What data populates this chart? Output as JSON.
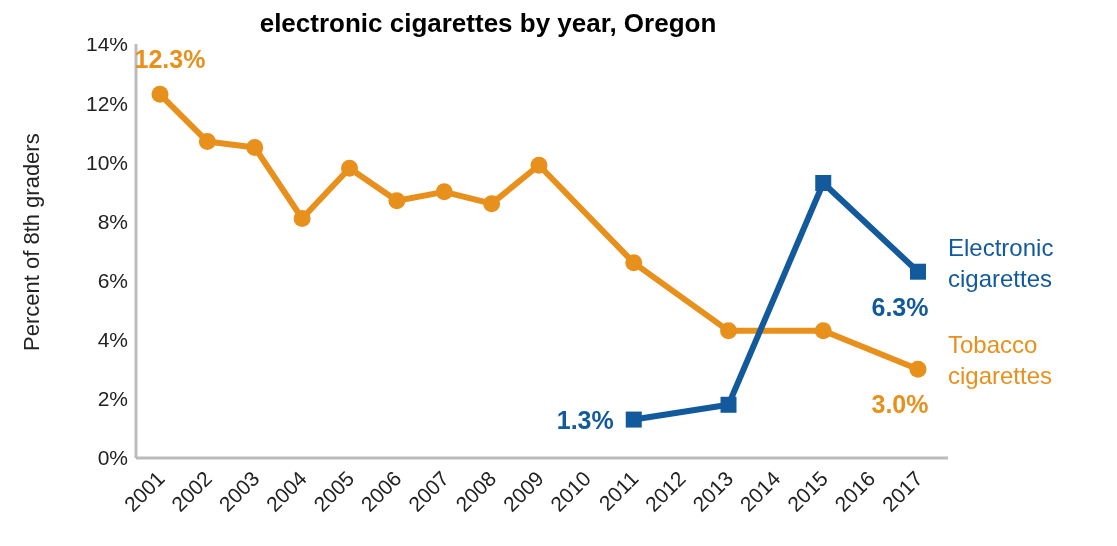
{
  "chart_data": {
    "type": "line",
    "title": "electronic cigarettes by year, Oregon",
    "ylabel": "Percent of 8th graders",
    "categories": [
      "2001",
      "2002",
      "2003",
      "2004",
      "2005",
      "2006",
      "2007",
      "2008",
      "2009",
      "2010",
      "2011",
      "2012",
      "2013",
      "2014",
      "2015",
      "2016",
      "2017"
    ],
    "series": [
      {
        "name": "Tobacco cigarettes",
        "color": "#e8901c",
        "marker": "circle",
        "values": [
          12.3,
          10.7,
          10.5,
          8.1,
          9.8,
          8.7,
          9.0,
          8.6,
          9.9,
          null,
          6.6,
          null,
          4.3,
          null,
          4.3,
          null,
          3.0
        ],
        "value_labels": [
          "12.3%",
          null,
          null,
          null,
          null,
          null,
          null,
          null,
          null,
          null,
          null,
          null,
          null,
          null,
          null,
          null,
          "3.0%"
        ]
      },
      {
        "name": "Electronic cigarettes",
        "color": "#125a9c",
        "marker": "square",
        "values": [
          null,
          null,
          null,
          null,
          null,
          null,
          null,
          null,
          null,
          null,
          1.3,
          null,
          1.8,
          null,
          9.3,
          null,
          6.3
        ],
        "value_labels": [
          null,
          null,
          null,
          null,
          null,
          null,
          null,
          null,
          null,
          null,
          "1.3%",
          null,
          null,
          null,
          null,
          null,
          "6.3%"
        ]
      }
    ],
    "ylim": [
      0,
      14
    ],
    "yticks": [
      {
        "value": 0,
        "label": "0%"
      },
      {
        "value": 2,
        "label": "2%"
      },
      {
        "value": 4,
        "label": "4%"
      },
      {
        "value": 6,
        "label": "6%"
      },
      {
        "value": 8,
        "label": "8%"
      },
      {
        "value": 10,
        "label": "10%"
      },
      {
        "value": 12,
        "label": "12%"
      },
      {
        "value": 14,
        "label": "14%"
      }
    ],
    "grid": false,
    "line_style": "solid"
  }
}
